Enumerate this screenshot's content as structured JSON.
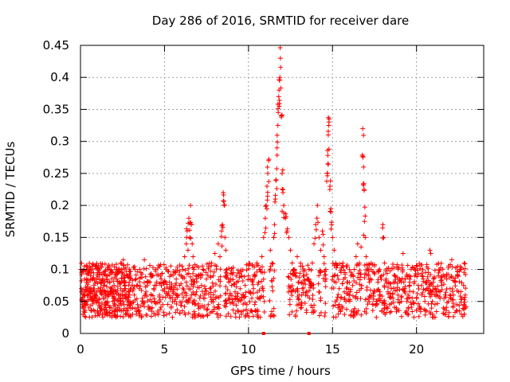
{
  "chart_data": {
    "type": "scatter",
    "title": "Day 286 of 2016, SRMTID for receiver dare",
    "xlabel": "GPS time / hours",
    "ylabel": "SRMTID / TECUs",
    "xlim": [
      0,
      24
    ],
    "ylim": [
      0,
      0.45
    ],
    "xticks": [
      0,
      5,
      10,
      15,
      20
    ],
    "xtick_labels": [
      "0",
      "5",
      "10",
      "15",
      "20"
    ],
    "yticks": [
      0,
      0.05,
      0.1,
      0.15,
      0.2,
      0.25,
      0.3,
      0.35,
      0.4,
      0.45
    ],
    "ytick_labels": [
      "0",
      "0.05",
      "0.1",
      "0.15",
      "0.2",
      "0.25",
      "0.3",
      "0.35",
      "0.4",
      "0.45"
    ],
    "grid": true,
    "marker": "plus",
    "color": "#ff0000",
    "series": [
      {
        "name": "SRMTID",
        "points": [
          [
            0.05,
            0.07
          ],
          [
            0.1,
            0.098
          ],
          [
            0.15,
            0.03
          ],
          [
            0.2,
            0.06
          ],
          [
            0.25,
            0.085
          ],
          [
            0.3,
            0.045
          ],
          [
            0.35,
            0.1
          ],
          [
            0.4,
            0.06
          ],
          [
            0.45,
            0.08
          ],
          [
            0.5,
            0.04
          ],
          [
            0.55,
            0.065
          ],
          [
            0.6,
            0.09
          ],
          [
            0.65,
            0.055
          ],
          [
            0.7,
            0.105
          ],
          [
            0.75,
            0.05
          ],
          [
            0.8,
            0.075
          ],
          [
            0.85,
            0.035
          ],
          [
            0.9,
            0.06
          ],
          [
            0.95,
            0.085
          ],
          [
            1.0,
            0.05
          ],
          [
            1.05,
            0.07
          ],
          [
            1.1,
            0.095
          ],
          [
            1.15,
            0.04
          ],
          [
            1.2,
            0.065
          ],
          [
            1.25,
            0.08
          ],
          [
            1.3,
            0.03
          ],
          [
            1.35,
            0.055
          ],
          [
            1.4,
            0.075
          ],
          [
            1.45,
            0.045
          ],
          [
            1.5,
            0.065
          ],
          [
            1.55,
            0.09
          ],
          [
            1.6,
            0.05
          ],
          [
            1.65,
            0.1
          ],
          [
            1.7,
            0.06
          ],
          [
            1.75,
            0.08
          ],
          [
            1.8,
            0.04
          ],
          [
            1.85,
            0.07
          ],
          [
            1.9,
            0.095
          ],
          [
            1.95,
            0.055
          ],
          [
            2.0,
            0.075
          ],
          [
            2.05,
            0.045
          ],
          [
            2.1,
            0.065
          ],
          [
            2.15,
            0.085
          ],
          [
            2.2,
            0.035
          ],
          [
            2.25,
            0.06
          ],
          [
            2.3,
            0.08
          ],
          [
            2.35,
            0.05
          ],
          [
            2.4,
            0.07
          ],
          [
            2.45,
            0.1
          ],
          [
            2.5,
            0.06
          ],
          [
            2.55,
            0.115
          ],
          [
            2.6,
            0.045
          ],
          [
            2.65,
            0.075
          ],
          [
            2.7,
            0.055
          ],
          [
            2.75,
            0.09
          ],
          [
            2.8,
            0.04
          ],
          [
            2.85,
            0.065
          ],
          [
            2.9,
            0.08
          ],
          [
            2.95,
            0.05
          ],
          [
            3.0,
            0.07
          ],
          [
            3.1,
            0.03
          ],
          [
            3.2,
            0.06
          ],
          [
            3.3,
            0.085
          ],
          [
            3.4,
            0.045
          ],
          [
            3.5,
            0.07
          ],
          [
            3.6,
            0.095
          ],
          [
            3.7,
            0.055
          ],
          [
            3.8,
            0.115
          ],
          [
            3.9,
            0.065
          ],
          [
            4.0,
            0.08
          ],
          [
            4.1,
            0.04
          ],
          [
            4.2,
            0.06
          ],
          [
            4.3,
            0.09
          ],
          [
            4.4,
            0.05
          ],
          [
            4.5,
            0.075
          ],
          [
            4.6,
            0.035
          ],
          [
            4.7,
            0.06
          ],
          [
            4.8,
            0.085
          ],
          [
            4.9,
            0.045
          ],
          [
            5.0,
            0.07
          ],
          [
            5.1,
            0.1
          ],
          [
            5.2,
            0.06
          ],
          [
            5.3,
            0.08
          ],
          [
            5.4,
            0.04
          ],
          [
            5.5,
            0.065
          ],
          [
            5.6,
            0.05
          ],
          [
            5.7,
            0.085
          ],
          [
            5.8,
            0.06
          ],
          [
            5.9,
            0.075
          ],
          [
            6.0,
            0.09
          ],
          [
            6.1,
            0.1
          ],
          [
            6.2,
            0.12
          ],
          [
            6.3,
            0.14
          ],
          [
            6.35,
            0.16
          ],
          [
            6.4,
            0.13
          ],
          [
            6.45,
            0.18
          ],
          [
            6.5,
            0.15
          ],
          [
            6.55,
            0.2
          ],
          [
            6.6,
            0.17
          ],
          [
            6.65,
            0.14
          ],
          [
            6.7,
            0.12
          ],
          [
            6.75,
            0.1
          ],
          [
            6.8,
            0.08
          ],
          [
            6.9,
            0.065
          ],
          [
            7.0,
            0.09
          ],
          [
            7.1,
            0.055
          ],
          [
            7.2,
            0.075
          ],
          [
            7.3,
            0.1
          ],
          [
            7.4,
            0.06
          ],
          [
            7.5,
            0.085
          ],
          [
            7.6,
            0.045
          ],
          [
            7.7,
            0.07
          ],
          [
            7.8,
            0.11
          ],
          [
            7.9,
            0.09
          ],
          [
            8.0,
            0.125
          ],
          [
            8.1,
            0.105
          ],
          [
            8.2,
            0.14
          ],
          [
            8.3,
            0.12
          ],
          [
            8.4,
            0.16
          ],
          [
            8.45,
            0.17
          ],
          [
            8.5,
            0.22
          ],
          [
            8.55,
            0.2
          ],
          [
            8.6,
            0.15
          ],
          [
            8.65,
            0.13
          ],
          [
            8.7,
            0.1
          ],
          [
            8.8,
            0.085
          ],
          [
            8.9,
            0.06
          ],
          [
            9.0,
            0.075
          ],
          [
            9.1,
            0.095
          ],
          [
            9.2,
            0.065
          ],
          [
            9.3,
            0.08
          ],
          [
            9.4,
            0.05
          ],
          [
            9.5,
            0.07
          ],
          [
            9.6,
            0.09
          ],
          [
            9.7,
            0.06
          ],
          [
            9.8,
            0.075
          ],
          [
            9.9,
            0.045
          ],
          [
            10.0,
            0.065
          ],
          [
            10.1,
            0.085
          ],
          [
            10.2,
            0.055
          ],
          [
            10.3,
            0.07
          ],
          [
            10.4,
            0.09
          ],
          [
            10.5,
            0.11
          ],
          [
            10.6,
            0.08
          ],
          [
            10.7,
            0.1
          ],
          [
            10.8,
            0.12
          ],
          [
            10.9,
            0.15
          ],
          [
            11.0,
            0.18
          ],
          [
            11.05,
            0.2
          ],
          [
            11.1,
            0.23
          ],
          [
            11.15,
            0.25
          ],
          [
            11.2,
            0.27
          ],
          [
            11.3,
            0.13
          ],
          [
            11.4,
            0.11
          ],
          [
            11.5,
            0.15
          ],
          [
            11.55,
            0.17
          ],
          [
            11.6,
            0.21
          ],
          [
            11.65,
            0.24
          ],
          [
            11.7,
            0.29
          ],
          [
            11.75,
            0.325
          ],
          [
            11.8,
            0.37
          ],
          [
            11.82,
            0.38
          ],
          [
            11.85,
            0.395
          ],
          [
            11.87,
            0.4
          ],
          [
            11.9,
            0.43
          ],
          [
            11.95,
            0.34
          ],
          [
            12.0,
            0.25
          ],
          [
            12.05,
            0.22
          ],
          [
            12.1,
            0.2
          ],
          [
            12.2,
            0.18
          ],
          [
            12.3,
            0.16
          ],
          [
            12.4,
            0.15
          ],
          [
            12.5,
            0.13
          ],
          [
            12.6,
            0.11
          ],
          [
            12.7,
            0.1
          ],
          [
            12.8,
            0.09
          ],
          [
            12.9,
            0.12
          ],
          [
            13.0,
            0.08
          ],
          [
            13.1,
            0.105
          ],
          [
            13.2,
            0.07
          ],
          [
            13.3,
            0.09
          ],
          [
            13.4,
            0.06
          ],
          [
            13.5,
            0.085
          ],
          [
            13.6,
            0.1
          ],
          [
            13.7,
            0.075
          ],
          [
            13.8,
            0.11
          ],
          [
            13.9,
            0.14
          ],
          [
            14.0,
            0.17
          ],
          [
            14.1,
            0.2
          ],
          [
            14.2,
            0.15
          ],
          [
            14.3,
            0.13
          ],
          [
            14.4,
            0.16
          ],
          [
            14.5,
            0.12
          ],
          [
            14.6,
            0.1
          ],
          [
            14.7,
            0.25
          ],
          [
            14.72,
            0.265
          ],
          [
            14.75,
            0.31
          ],
          [
            14.78,
            0.325
          ],
          [
            14.8,
            0.335
          ],
          [
            14.85,
            0.23
          ],
          [
            14.9,
            0.195
          ],
          [
            14.95,
            0.17
          ],
          [
            15.0,
            0.15
          ],
          [
            15.1,
            0.13
          ],
          [
            15.2,
            0.11
          ],
          [
            15.3,
            0.09
          ],
          [
            15.4,
            0.07
          ],
          [
            15.5,
            0.055
          ],
          [
            15.6,
            0.04
          ],
          [
            15.7,
            0.065
          ],
          [
            15.8,
            0.05
          ],
          [
            15.9,
            0.08
          ],
          [
            16.0,
            0.06
          ],
          [
            16.1,
            0.09
          ],
          [
            16.2,
            0.075
          ],
          [
            16.3,
            0.1
          ],
          [
            16.4,
            0.12
          ],
          [
            16.5,
            0.14
          ],
          [
            16.6,
            0.11
          ],
          [
            16.7,
            0.135
          ],
          [
            16.8,
            0.32
          ],
          [
            16.82,
            0.275
          ],
          [
            16.85,
            0.26
          ],
          [
            16.88,
            0.225
          ],
          [
            16.9,
            0.175
          ],
          [
            16.95,
            0.15
          ],
          [
            17.0,
            0.12
          ],
          [
            17.1,
            0.1
          ],
          [
            17.2,
            0.08
          ],
          [
            17.3,
            0.06
          ],
          [
            17.4,
            0.045
          ],
          [
            17.5,
            0.065
          ],
          [
            17.6,
            0.05
          ],
          [
            17.7,
            0.08
          ],
          [
            17.8,
            0.06
          ],
          [
            17.9,
            0.09
          ],
          [
            18.0,
            0.17
          ],
          [
            18.05,
            0.15
          ],
          [
            18.1,
            0.11
          ],
          [
            18.2,
            0.085
          ],
          [
            18.3,
            0.065
          ],
          [
            18.4,
            0.045
          ],
          [
            18.5,
            0.07
          ],
          [
            18.6,
            0.055
          ],
          [
            18.7,
            0.08
          ],
          [
            18.8,
            0.04
          ],
          [
            18.9,
            0.06
          ],
          [
            19.0,
            0.085
          ],
          [
            19.1,
            0.05
          ],
          [
            19.2,
            0.125
          ],
          [
            19.3,
            0.07
          ],
          [
            19.4,
            0.035
          ],
          [
            19.5,
            0.06
          ],
          [
            19.6,
            0.08
          ],
          [
            19.7,
            0.045
          ],
          [
            19.8,
            0.065
          ],
          [
            19.9,
            0.09
          ],
          [
            20.0,
            0.055
          ],
          [
            20.1,
            0.075
          ],
          [
            20.2,
            0.04
          ],
          [
            20.3,
            0.06
          ],
          [
            20.4,
            0.085
          ],
          [
            20.5,
            0.05
          ],
          [
            20.6,
            0.07
          ],
          [
            20.7,
            0.095
          ],
          [
            20.8,
            0.13
          ],
          [
            20.85,
            0.125
          ],
          [
            20.9,
            0.065
          ],
          [
            21.0,
            0.08
          ],
          [
            21.1,
            0.045
          ],
          [
            21.2,
            0.065
          ],
          [
            21.3,
            0.09
          ],
          [
            21.4,
            0.055
          ],
          [
            21.5,
            0.075
          ],
          [
            21.6,
            0.04
          ],
          [
            21.7,
            0.06
          ],
          [
            21.8,
            0.085
          ],
          [
            21.9,
            0.05
          ],
          [
            22.0,
            0.07
          ],
          [
            22.1,
            0.115
          ],
          [
            22.2,
            0.06
          ],
          [
            22.3,
            0.08
          ],
          [
            22.4,
            0.045
          ],
          [
            22.5,
            0.065
          ],
          [
            22.6,
            0.1
          ],
          [
            22.7,
            0.055
          ],
          [
            22.8,
            0.075
          ],
          [
            22.85,
            0.03
          ],
          [
            22.9,
            0.06
          ]
        ]
      }
    ],
    "axis_marks_x": [
      10.9,
      13.6
    ]
  }
}
